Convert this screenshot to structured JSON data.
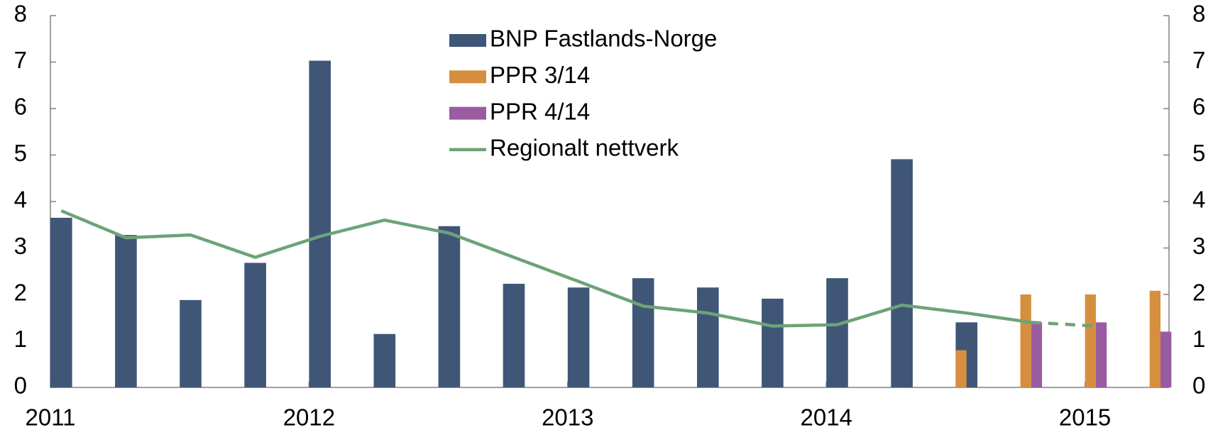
{
  "chart_data": {
    "type": "bar",
    "categories": [
      "2011",
      null,
      null,
      null,
      "2012",
      null,
      null,
      null,
      "2013",
      null,
      null,
      null,
      "2014",
      null,
      null,
      null,
      "2015",
      null
    ],
    "series": [
      {
        "name": "BNP Fastlands-Norge",
        "color": "#3f5677",
        "values": [
          3.65,
          3.28,
          1.88,
          2.68,
          7.03,
          1.15,
          3.47,
          2.23,
          2.15,
          2.35,
          2.15,
          1.91,
          2.35,
          4.91,
          1.4,
          null,
          null,
          null
        ]
      },
      {
        "name": "PPR 3/14",
        "color": "#d58f3e",
        "values": [
          null,
          null,
          null,
          null,
          null,
          null,
          null,
          null,
          null,
          null,
          null,
          null,
          null,
          null,
          0.8,
          2.0,
          2.0,
          2.08
        ]
      },
      {
        "name": "PPR 4/14",
        "color": "#9a5ca0",
        "values": [
          null,
          null,
          null,
          null,
          null,
          null,
          null,
          null,
          null,
          null,
          null,
          null,
          null,
          null,
          null,
          1.4,
          1.4,
          1.2
        ]
      },
      {
        "name": "Regionalt nettverk",
        "color": "#6da377",
        "type": "line",
        "dash_from": 15,
        "values": [
          3.8,
          3.22,
          3.28,
          2.8,
          3.25,
          3.6,
          3.32,
          2.8,
          2.28,
          1.75,
          1.6,
          1.32,
          1.35,
          1.77,
          1.6,
          1.4,
          1.32,
          null
        ]
      }
    ],
    "ylim": [
      0,
      8
    ],
    "yticks": [
      0,
      1,
      2,
      3,
      4,
      5,
      6,
      7,
      8
    ],
    "y2lim": [
      0,
      8
    ],
    "y2ticks": [
      0,
      1,
      2,
      3,
      4,
      5,
      6,
      7,
      8
    ],
    "legend": "top-center"
  }
}
